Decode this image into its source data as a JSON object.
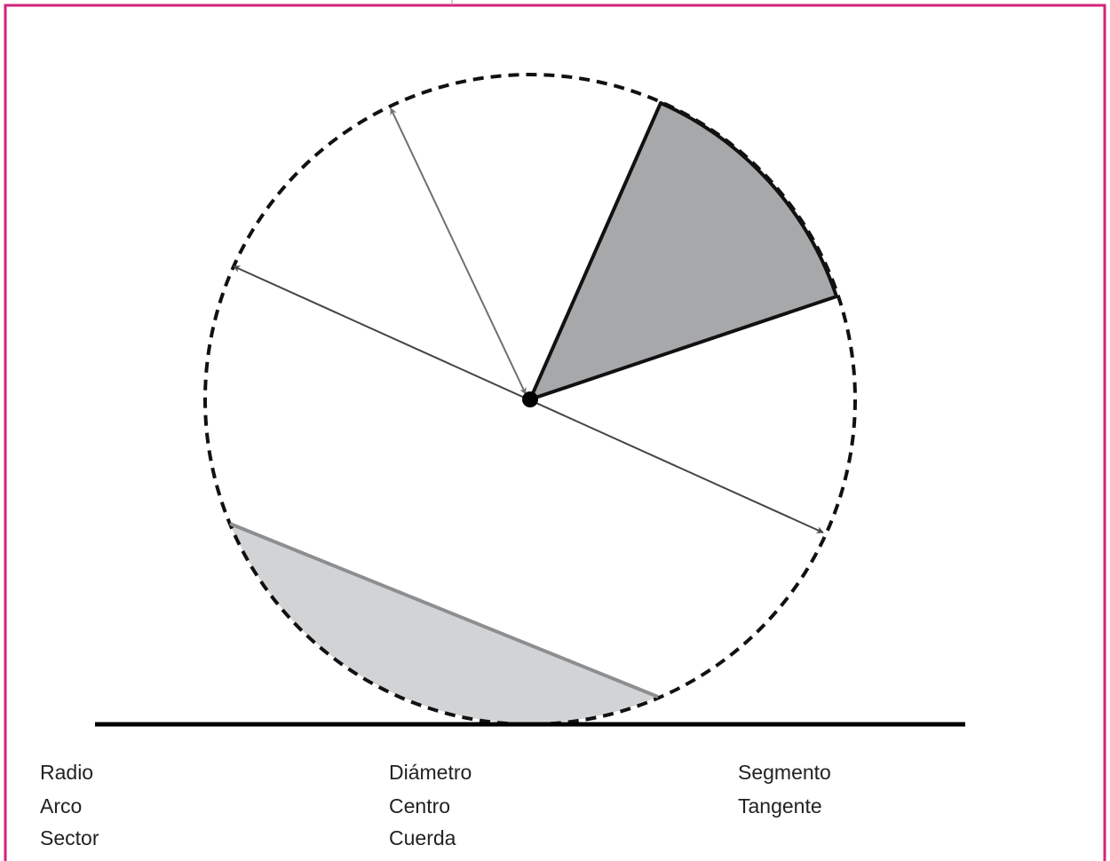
{
  "diagram": {
    "colors": {
      "frame": "#d4237a",
      "circle_outline": "#111111",
      "sector_fill": "#a7a8aa",
      "segment_fill": "#d2d3d5",
      "chord": "#8d8e90",
      "diameter_arrow": "#444444",
      "radius_arrow": "#6f6f6f",
      "center_point": "#000000",
      "tangent_line": "#000000"
    },
    "terms": {
      "col1": [
        "Radio",
        "Arco",
        "Sector"
      ],
      "col2": [
        "Diámetro",
        "Centro",
        "Cuerda"
      ],
      "col3": [
        "Segmento",
        "Tangente"
      ]
    }
  }
}
